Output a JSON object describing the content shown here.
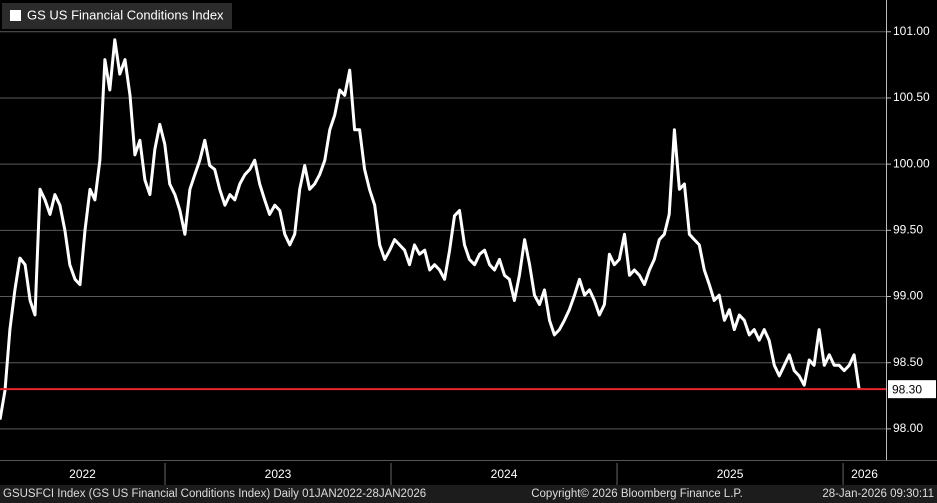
{
  "chart_data": {
    "type": "line",
    "series": [
      {
        "name": "GS US Financial Conditions Index",
        "color": "#ffffff",
        "values": [
          98.07,
          98.29,
          98.75,
          99.05,
          99.29,
          99.24,
          98.97,
          98.86,
          99.81,
          99.73,
          99.62,
          99.77,
          99.69,
          99.5,
          99.24,
          99.13,
          99.09,
          99.5,
          99.81,
          99.73,
          100.03,
          100.79,
          100.56,
          100.94,
          100.68,
          100.79,
          100.52,
          100.07,
          100.18,
          99.88,
          99.77,
          100.11,
          100.3,
          100.15,
          99.85,
          99.77,
          99.65,
          99.47,
          99.81,
          99.92,
          100.03,
          100.18,
          99.99,
          99.96,
          99.81,
          99.69,
          99.77,
          99.73,
          99.85,
          99.92,
          99.96,
          100.03,
          99.85,
          99.73,
          99.62,
          99.69,
          99.65,
          99.47,
          99.39,
          99.47,
          99.81,
          99.99,
          99.81,
          99.85,
          99.92,
          100.03,
          100.26,
          100.37,
          100.56,
          100.52,
          100.71,
          100.26,
          100.26,
          99.96,
          99.81,
          99.69,
          99.39,
          99.28,
          99.35,
          99.43,
          99.39,
          99.35,
          99.24,
          99.39,
          99.32,
          99.35,
          99.2,
          99.24,
          99.2,
          99.13,
          99.35,
          99.61,
          99.65,
          99.39,
          99.28,
          99.24,
          99.32,
          99.35,
          99.24,
          99.2,
          99.28,
          99.16,
          99.13,
          98.97,
          99.16,
          99.43,
          99.24,
          99.01,
          98.94,
          99.05,
          98.82,
          98.71,
          98.75,
          98.82,
          98.9,
          99.01,
          99.13,
          99.01,
          99.05,
          98.97,
          98.86,
          98.94,
          99.32,
          99.24,
          99.28,
          99.47,
          99.16,
          99.2,
          99.16,
          99.09,
          99.2,
          99.28,
          99.43,
          99.47,
          99.62,
          100.26,
          99.81,
          99.85,
          99.47,
          99.43,
          99.39,
          99.2,
          99.09,
          98.97,
          99.01,
          98.82,
          98.9,
          98.75,
          98.86,
          98.82,
          98.71,
          98.75,
          98.67,
          98.75,
          98.67,
          98.48,
          98.4,
          98.48,
          98.56,
          98.44,
          98.4,
          98.33,
          98.52,
          98.48,
          98.75,
          98.48,
          98.56,
          98.48,
          98.48,
          98.44,
          98.48,
          98.56,
          98.3
        ]
      }
    ],
    "x": [
      2022.27,
      2022.292,
      2022.314,
      2022.336,
      2022.358,
      2022.381,
      2022.403,
      2022.425,
      2022.447,
      2022.469,
      2022.491,
      2022.513,
      2022.535,
      2022.557,
      2022.579,
      2022.602,
      2022.624,
      2022.646,
      2022.668,
      2022.69,
      2022.712,
      2022.734,
      2022.756,
      2022.778,
      2022.8,
      2022.823,
      2022.845,
      2022.867,
      2022.889,
      2022.911,
      2022.933,
      2022.955,
      2022.977,
      2022.999,
      2023.021,
      2023.044,
      2023.066,
      2023.088,
      2023.11,
      2023.132,
      2023.154,
      2023.176,
      2023.198,
      2023.22,
      2023.242,
      2023.265,
      2023.287,
      2023.309,
      2023.331,
      2023.353,
      2023.375,
      2023.397,
      2023.419,
      2023.441,
      2023.463,
      2023.486,
      2023.508,
      2023.53,
      2023.552,
      2023.574,
      2023.596,
      2023.618,
      2023.64,
      2023.662,
      2023.684,
      2023.707,
      2023.729,
      2023.751,
      2023.773,
      2023.795,
      2023.817,
      2023.839,
      2023.861,
      2023.883,
      2023.905,
      2023.928,
      2023.95,
      2023.972,
      2023.994,
      2024.016,
      2024.038,
      2024.06,
      2024.082,
      2024.104,
      2024.126,
      2024.149,
      2024.171,
      2024.193,
      2024.215,
      2024.237,
      2024.259,
      2024.281,
      2024.303,
      2024.325,
      2024.347,
      2024.37,
      2024.392,
      2024.414,
      2024.436,
      2024.458,
      2024.48,
      2024.502,
      2024.524,
      2024.546,
      2024.568,
      2024.591,
      2024.613,
      2024.635,
      2024.657,
      2024.679,
      2024.701,
      2024.723,
      2024.745,
      2024.767,
      2024.789,
      2024.812,
      2024.834,
      2024.856,
      2024.878,
      2024.9,
      2024.922,
      2024.944,
      2024.966,
      2024.988,
      2025.01,
      2025.033,
      2025.055,
      2025.077,
      2025.099,
      2025.121,
      2025.143,
      2025.165,
      2025.187,
      2025.209,
      2025.231,
      2025.254,
      2025.276,
      2025.298,
      2025.32,
      2025.342,
      2025.364,
      2025.386,
      2025.408,
      2025.43,
      2025.452,
      2025.475,
      2025.497,
      2025.519,
      2025.541,
      2025.563,
      2025.585,
      2025.607,
      2025.629,
      2025.651,
      2025.673,
      2025.696,
      2025.718,
      2025.74,
      2025.762,
      2025.784,
      2025.806,
      2025.828,
      2025.85,
      2025.872,
      2025.894,
      2025.917,
      2025.939,
      2025.961,
      2025.983,
      2026.005,
      2026.027,
      2026.049,
      2026.071
    ],
    "xlim": [
      2022.27,
      2026.19
    ],
    "xticks": [
      {
        "value": 2022,
        "label": "2022"
      },
      {
        "value": 2023,
        "label": "2023"
      },
      {
        "value": 2024,
        "label": "2024"
      },
      {
        "value": 2025,
        "label": "2025"
      },
      {
        "value": 2026,
        "label": "2026"
      }
    ],
    "ylim": [
      97.78,
      101.24
    ],
    "yticks": [
      {
        "value": 98,
        "label": "98.00"
      },
      {
        "value": 98.5,
        "label": "98.50"
      },
      {
        "value": 99,
        "label": "99.00"
      },
      {
        "value": 99.5,
        "label": "99.50"
      },
      {
        "value": 100,
        "label": "100.00"
      },
      {
        "value": 100.5,
        "label": "100.50"
      },
      {
        "value": 101,
        "label": "101.00"
      }
    ],
    "grid": true,
    "reference_line": {
      "value": 98.3,
      "label": "98.30",
      "color": "#e8262f"
    },
    "footer": {
      "left": "GSUSFCI Index (GS US Financial Conditions Index) Daily 01JAN2022-28JAN2026",
      "center": "Copyright© 2026 Bloomberg Finance L.P.",
      "right": "28-Jan-2026 09:30:11"
    }
  }
}
